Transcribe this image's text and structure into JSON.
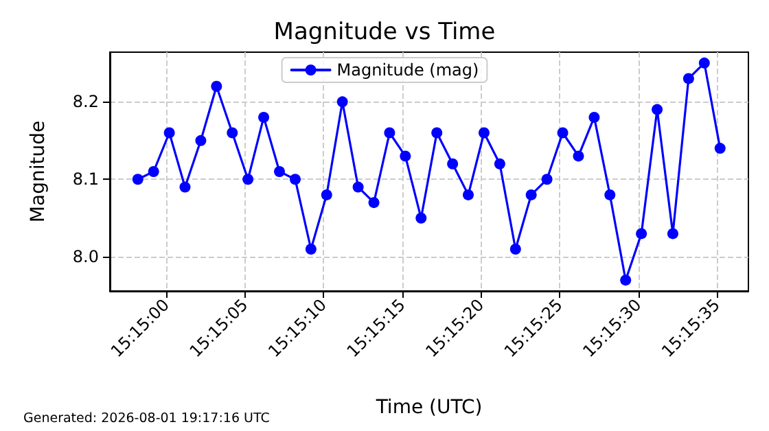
{
  "chart_data": {
    "type": "line",
    "title": "Magnitude vs Time",
    "xlabel": "Time (UTC)",
    "ylabel": "Magnitude",
    "annotations": [
      "Generated: 2026-08-01 19:17:16 UTC"
    ],
    "x": [
      15.2495,
      15.249778,
      15.250056,
      15.250333,
      15.250611,
      15.250889,
      15.251167,
      15.251444,
      15.251722,
      15.252,
      15.252278,
      15.252556,
      15.252833,
      15.253111,
      15.253389,
      15.253667,
      15.253944,
      15.254222,
      15.2545,
      15.254778,
      15.255056,
      15.255333,
      15.255611,
      15.255889,
      15.256167,
      15.256444,
      15.256722,
      15.257,
      15.257278,
      15.257556,
      15.257833,
      15.258111,
      15.258389,
      15.258667,
      15.258944,
      15.259222,
      15.2595,
      15.259778
    ],
    "series": [
      {
        "name": "Magnitude (mag)",
        "color": "#0000ff",
        "values": [
          8.1,
          8.11,
          8.16,
          8.09,
          8.15,
          8.22,
          8.16,
          8.1,
          8.18,
          8.11,
          8.1,
          8.01,
          8.08,
          8.2,
          8.09,
          8.07,
          8.16,
          8.13,
          8.05,
          8.16,
          8.12,
          8.08,
          8.16,
          8.12,
          8.01,
          8.08,
          8.1,
          8.16,
          8.13,
          8.18,
          8.08,
          7.97,
          8.03,
          8.19,
          8.03,
          8.23,
          8.25,
          8.14
        ]
      }
    ],
    "xlim": [
      15.249006,
      15.260278
    ],
    "xticks": [
      {
        "value": 15.25,
        "label": "15:15:00"
      },
      {
        "value": 15.251389,
        "label": "15:15:05"
      },
      {
        "value": 15.252778,
        "label": "15:15:10"
      },
      {
        "value": 15.254167,
        "label": "15:15:15"
      },
      {
        "value": 15.255556,
        "label": "15:15:20"
      },
      {
        "value": 15.256944,
        "label": "15:15:25"
      },
      {
        "value": 15.258333,
        "label": "15:15:30"
      },
      {
        "value": 15.259722,
        "label": "15:15:35"
      }
    ],
    "ylim": [
      7.956,
      8.264
    ],
    "yticks": [
      {
        "value": 8.0,
        "label": "8.0"
      },
      8.1,
      8.2
    ],
    "grid": true,
    "legend": "top",
    "marker": "circle",
    "line_style": "solid"
  }
}
